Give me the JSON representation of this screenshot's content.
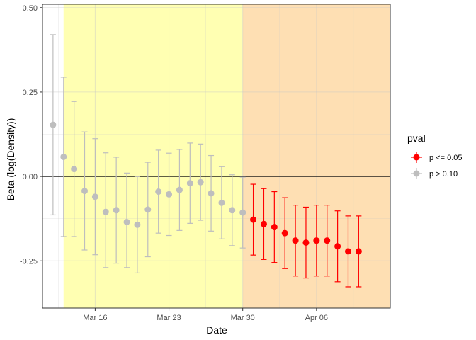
{
  "chart_data": {
    "type": "scatter",
    "title": "",
    "xlabel": "Date",
    "ylabel": "Beta (log(Density))",
    "x_ticks": [
      "Mar 16",
      "Mar 23",
      "Mar 30",
      "Apr 06"
    ],
    "y_ticks": [
      "-0.25",
      "0.00",
      "0.25",
      "0.50"
    ],
    "xlim": [
      "2020-03-11",
      "2020-04-13"
    ],
    "ylim": [
      -0.39,
      0.51
    ],
    "grid": true,
    "reference_line_y": 0,
    "shaded_periods": [
      {
        "start": "2020-03-13",
        "end": "2020-03-30",
        "color": "#ffffb2"
      },
      {
        "start": "2020-03-30",
        "end": "2020-04-13",
        "color": "#fedfb3"
      }
    ],
    "legend": {
      "title": "pval",
      "position": "right",
      "entries": [
        {
          "label": "p <= 0.05",
          "color": "#ff0000"
        },
        {
          "label": "p > 0.10",
          "color": "#bebebe"
        }
      ]
    },
    "series": [
      {
        "name": "p <= 0.05",
        "color": "#ff0000",
        "points": [
          {
            "x": "2020-03-31",
            "y": -0.128,
            "lo": -0.233,
            "hi": -0.023
          },
          {
            "x": "2020-04-01",
            "y": -0.141,
            "lo": -0.246,
            "hi": -0.036
          },
          {
            "x": "2020-04-02",
            "y": -0.15,
            "lo": -0.255,
            "hi": -0.045
          },
          {
            "x": "2020-04-03",
            "y": -0.168,
            "lo": -0.273,
            "hi": -0.063
          },
          {
            "x": "2020-04-04",
            "y": -0.19,
            "lo": -0.295,
            "hi": -0.085
          },
          {
            "x": "2020-04-05",
            "y": -0.196,
            "lo": -0.301,
            "hi": -0.091
          },
          {
            "x": "2020-04-06",
            "y": -0.19,
            "lo": -0.295,
            "hi": -0.085
          },
          {
            "x": "2020-04-07",
            "y": -0.19,
            "lo": -0.295,
            "hi": -0.085
          },
          {
            "x": "2020-04-08",
            "y": -0.207,
            "lo": -0.312,
            "hi": -0.102
          },
          {
            "x": "2020-04-09",
            "y": -0.222,
            "lo": -0.327,
            "hi": -0.117
          },
          {
            "x": "2020-04-10",
            "y": -0.222,
            "lo": -0.327,
            "hi": -0.117
          }
        ]
      },
      {
        "name": "p > 0.10",
        "color": "#bebebe",
        "points": [
          {
            "x": "2020-03-12",
            "y": 0.153,
            "lo": -0.114,
            "hi": 0.42
          },
          {
            "x": "2020-03-13",
            "y": 0.058,
            "lo": -0.178,
            "hi": 0.294
          },
          {
            "x": "2020-03-14",
            "y": 0.022,
            "lo": -0.178,
            "hi": 0.222
          },
          {
            "x": "2020-03-15",
            "y": -0.043,
            "lo": -0.218,
            "hi": 0.132
          },
          {
            "x": "2020-03-16",
            "y": -0.06,
            "lo": -0.232,
            "hi": 0.112
          },
          {
            "x": "2020-03-17",
            "y": -0.105,
            "lo": -0.27,
            "hi": 0.07
          },
          {
            "x": "2020-03-18",
            "y": -0.1,
            "lo": -0.257,
            "hi": 0.057
          },
          {
            "x": "2020-03-19",
            "y": -0.135,
            "lo": -0.27,
            "hi": 0.01
          },
          {
            "x": "2020-03-20",
            "y": -0.143,
            "lo": -0.286,
            "hi": 0.0
          },
          {
            "x": "2020-03-21",
            "y": -0.098,
            "lo": -0.238,
            "hi": 0.042
          },
          {
            "x": "2020-03-22",
            "y": -0.045,
            "lo": -0.168,
            "hi": 0.078
          },
          {
            "x": "2020-03-23",
            "y": -0.053,
            "lo": -0.175,
            "hi": 0.069
          },
          {
            "x": "2020-03-24",
            "y": -0.04,
            "lo": -0.16,
            "hi": 0.08
          },
          {
            "x": "2020-03-25",
            "y": -0.02,
            "lo": -0.139,
            "hi": 0.099
          },
          {
            "x": "2020-03-26",
            "y": -0.017,
            "lo": -0.13,
            "hi": 0.096
          },
          {
            "x": "2020-03-27",
            "y": -0.05,
            "lo": -0.162,
            "hi": 0.062
          },
          {
            "x": "2020-03-28",
            "y": -0.078,
            "lo": -0.185,
            "hi": 0.029
          },
          {
            "x": "2020-03-29",
            "y": -0.1,
            "lo": -0.205,
            "hi": 0.005
          },
          {
            "x": "2020-03-30",
            "y": -0.107,
            "lo": -0.212,
            "hi": -0.002
          }
        ]
      }
    ]
  }
}
